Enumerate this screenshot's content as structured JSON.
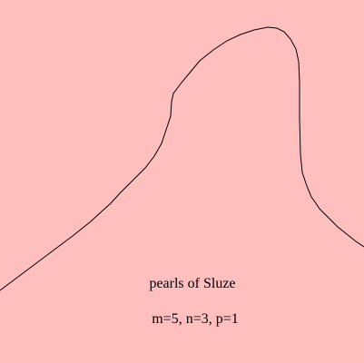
{
  "caption": {
    "title": "pearls of Sluze",
    "parameters": "m=5, n=3, p=1"
  }
}
